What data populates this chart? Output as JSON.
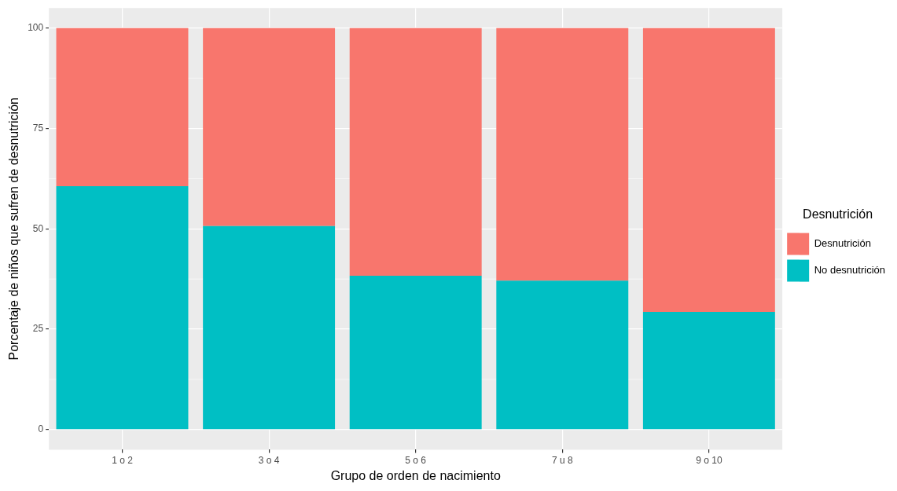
{
  "chart_data": {
    "type": "bar",
    "xlabel": "Grupo de orden de nacimiento",
    "ylabel": "Porcentaje de niños que sufren de desnutrición",
    "legend_title": "Desnutrición",
    "categories": [
      "1 o 2",
      "3 o 4",
      "5 o 6",
      "7 u 8",
      "9 o 10"
    ],
    "series": [
      {
        "name": "No desnutrición",
        "color": "#00bfc4",
        "values": [
          60.6,
          50.7,
          38.3,
          37.1,
          29.3
        ]
      },
      {
        "name": "Desnutrición",
        "color": "#f8766d",
        "values": [
          39.4,
          49.3,
          61.7,
          62.9,
          70.7
        ]
      }
    ],
    "stacked": true,
    "ylim": [
      -5,
      105
    ],
    "yticks": [
      0,
      25,
      50,
      75,
      100
    ],
    "grid": true,
    "legend": "right"
  }
}
